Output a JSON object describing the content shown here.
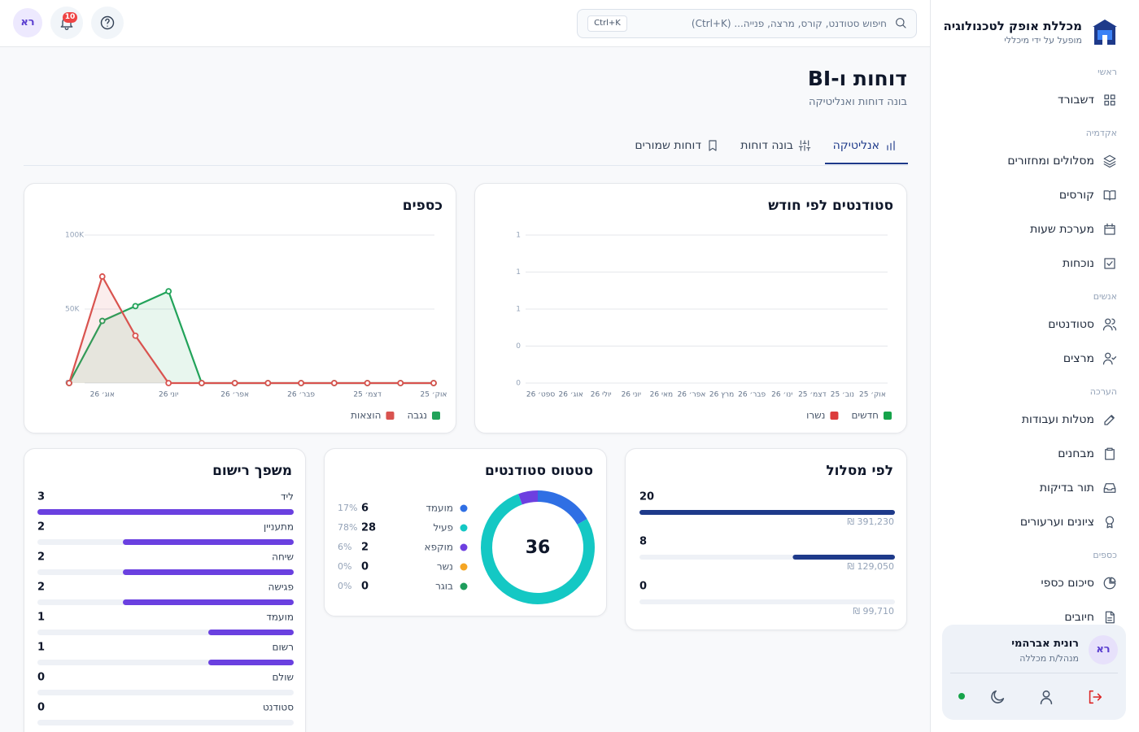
{
  "sidebar": {
    "brand": {
      "title": "מכללת אופק לטכנולוגיה",
      "subtitle": "מופעל על ידי מיכללי"
    },
    "sections": [
      {
        "label": "ראשי",
        "items": [
          "דשבורד"
        ]
      },
      {
        "label": "אקדמיה",
        "items": [
          "מסלולים ומחזורים",
          "קורסים",
          "מערכת שעות",
          "נוכחות"
        ]
      },
      {
        "label": "אנשים",
        "items": [
          "סטודנטים",
          "מרצים"
        ]
      },
      {
        "label": "הערכה",
        "items": [
          "מטלות ועבודות",
          "מבחנים",
          "תור בדיקות",
          "ציונים וערעורים"
        ]
      },
      {
        "label": "כספים",
        "items": [
          "סיכום כספי",
          "חיובים"
        ]
      }
    ],
    "user": {
      "initials": "רא",
      "name": "רונית אברהמי",
      "role": "מנהל/ת מכללה"
    }
  },
  "topbar": {
    "search_placeholder": "חיפוש סטודנט, קורס, מרצה, פנייה... (Ctrl+K)",
    "shortcut": "Ctrl+K",
    "notifications": 10,
    "avatar": "רא"
  },
  "page": {
    "title": "דוחות ו-BI",
    "subtitle": "בונה דוחות ואנליטיקה",
    "tabs": [
      "אנליטיקה",
      "בונה דוחות",
      "דוחות שמורים"
    ],
    "active_tab": 0
  },
  "chart_data": [
    {
      "type": "bar",
      "title": "סטודנטים לפי חודש",
      "categories": [
        "אוק׳ 25",
        "נוב׳ 25",
        "דצמ׳ 25",
        "ינו׳ 26",
        "פבר׳ 26",
        "מרץ 26",
        "אפר׳ 26",
        "מאי 26",
        "יוני 26",
        "יולי 26",
        "אוג׳ 26",
        "ספט׳ 26"
      ],
      "x_reversed": true,
      "series": [
        {
          "name": "חדשים",
          "color": "#16a34a",
          "values": [
            0,
            0,
            0,
            0,
            0,
            0,
            0,
            0,
            0,
            0,
            0,
            0
          ]
        },
        {
          "name": "נשרו",
          "color": "#dc3b3b",
          "values": [
            0,
            0,
            0,
            0,
            0,
            0,
            0,
            0,
            0,
            0,
            0,
            0
          ]
        }
      ],
      "ylim": [
        0,
        1
      ],
      "yticks": [
        0,
        {
          "value": 0.25,
          "label": "0"
        },
        {
          "value": 0.5,
          "label": "1"
        },
        {
          "value": 0.75,
          "label": "1"
        },
        1
      ],
      "grid": true,
      "legend": "bottom-right"
    },
    {
      "type": "area",
      "title": "כספים",
      "categories": [
        "אוק׳ 25",
        null,
        "דצמ׳ 25",
        null,
        "פבר׳ 26",
        null,
        "אפר׳ 26",
        null,
        "יוני 26",
        null,
        "אוג׳ 26",
        null
      ],
      "x_reversed": true,
      "series": [
        {
          "name": "נגבה",
          "color": "#22a35a",
          "values": [
            0,
            0,
            0,
            0,
            0,
            0,
            0,
            0,
            62000,
            52000,
            42000,
            0
          ]
        },
        {
          "name": "הוצאות",
          "color": "#d9534f",
          "values": [
            0,
            0,
            0,
            0,
            0,
            0,
            0,
            0,
            0,
            32000,
            72000,
            0
          ]
        }
      ],
      "ylim": [
        0,
        100000
      ],
      "yticks": [
        0,
        {
          "value": 50000,
          "label": "50K"
        },
        {
          "value": 100000,
          "label": "100K"
        }
      ],
      "grid": true,
      "legend": "bottom-right"
    },
    {
      "type": "hbar",
      "title": "לפי מסלול",
      "values": [
        20,
        8,
        0
      ],
      "amounts": [
        "391,230 ₪",
        "129,050 ₪",
        "99,710 ₪"
      ],
      "color": "#1e3a8a",
      "x_reversed": true
    },
    {
      "type": "donut",
      "title": "סטטוס סטודנטים",
      "total": 36,
      "categories": [
        "מועמד",
        "פעיל",
        "מוקפא",
        "נשר",
        "בוגר"
      ],
      "values": [
        6,
        28,
        2,
        0,
        0
      ],
      "percent_labels": [
        "17%",
        "78%",
        "6%",
        "0%",
        "0%"
      ],
      "colors": [
        "#2f6fe4",
        "#14c8c4",
        "#6d3fe0",
        "#f5a524",
        "#1f9d5c"
      ]
    },
    {
      "type": "hbar",
      "title": "משפך רישום",
      "categories": [
        "ליד",
        "מתעניין",
        "שיחה",
        "פגישה",
        "מועמד",
        "רשום",
        "שולם",
        "סטודנט"
      ],
      "values": [
        3,
        2,
        2,
        2,
        1,
        1,
        0,
        0
      ],
      "color": "#6a40e0",
      "x_reversed": true
    }
  ]
}
